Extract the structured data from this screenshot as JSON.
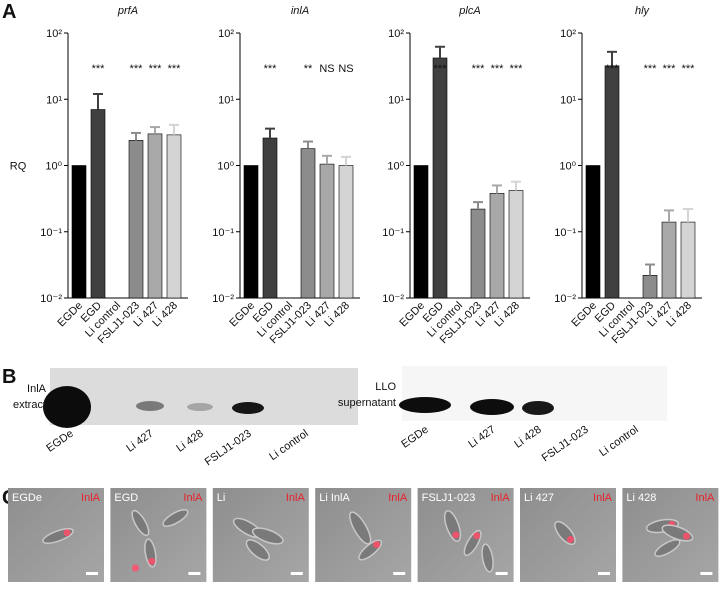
{
  "panel_labels": [
    "A",
    "B",
    "C"
  ],
  "chart_data": [
    {
      "type": "bar",
      "title": "prfA",
      "ylabel": "RQ",
      "log_y": true,
      "categories": [
        "EGDe",
        "EGD",
        "Li control",
        "FSLJ1-023",
        "Li 427",
        "Li 428"
      ],
      "colors": [
        "#000000",
        "#404040",
        "#888888",
        "#8c8c8c",
        "#a8a8a8",
        "#d4d4d4"
      ],
      "values": [
        1,
        7,
        null,
        2.4,
        3.0,
        2.9
      ],
      "errors": [
        null,
        5,
        null,
        0.7,
        0.8,
        1.2
      ],
      "significance": [
        null,
        "***",
        null,
        "***",
        "***",
        "***"
      ],
      "ylim": [
        0.01,
        100
      ],
      "yticks": [
        {
          "value": 0.01,
          "label": "10⁻²"
        },
        {
          "value": 0.1,
          "label": "10⁻¹"
        },
        {
          "value": 1,
          "label": "10⁰"
        },
        {
          "value": 10,
          "label": "10¹"
        },
        {
          "value": 100,
          "label": "10²"
        }
      ]
    },
    {
      "type": "bar",
      "title": "inlA",
      "log_y": true,
      "categories": [
        "EGDe",
        "EGD",
        "Li control",
        "FSLJ1-023",
        "Li 427",
        "Li 428"
      ],
      "colors": [
        "#000000",
        "#404040",
        "#888888",
        "#8c8c8c",
        "#a8a8a8",
        "#d4d4d4"
      ],
      "values": [
        1,
        2.6,
        null,
        1.8,
        1.05,
        1.0
      ],
      "errors": [
        null,
        1.0,
        null,
        0.5,
        0.35,
        0.35
      ],
      "significance": [
        null,
        "***",
        null,
        "**",
        "NS",
        "NS"
      ],
      "ylim": [
        0.01,
        100
      ],
      "yticks": [
        {
          "value": 0.01,
          "label": "10⁻²"
        },
        {
          "value": 0.1,
          "label": "10⁻¹"
        },
        {
          "value": 1,
          "label": "10⁰"
        },
        {
          "value": 10,
          "label": "10¹"
        },
        {
          "value": 100,
          "label": "10²"
        }
      ]
    },
    {
      "type": "bar",
      "title": "plcA",
      "log_y": true,
      "categories": [
        "EGDe",
        "EGD",
        "Li control",
        "FSLJ1-023",
        "Li 427",
        "Li 428"
      ],
      "colors": [
        "#000000",
        "#404040",
        "#888888",
        "#8c8c8c",
        "#a8a8a8",
        "#d4d4d4"
      ],
      "values": [
        1,
        42,
        null,
        0.22,
        0.38,
        0.42
      ],
      "errors": [
        null,
        20,
        null,
        0.06,
        0.12,
        0.15
      ],
      "significance": [
        null,
        "***",
        null,
        "***",
        "***",
        "***"
      ],
      "ylim": [
        0.01,
        100
      ],
      "yticks": [
        {
          "value": 0.01,
          "label": "10⁻²"
        },
        {
          "value": 0.1,
          "label": "10⁻¹"
        },
        {
          "value": 1,
          "label": "10⁰"
        },
        {
          "value": 10,
          "label": "10¹"
        },
        {
          "value": 100,
          "label": "10²"
        }
      ]
    },
    {
      "type": "bar",
      "title": "hly",
      "log_y": true,
      "categories": [
        "EGDe",
        "EGD",
        "Li control",
        "FSLJ1-023",
        "Li 427",
        "Li 428"
      ],
      "colors": [
        "#000000",
        "#404040",
        "#888888",
        "#8c8c8c",
        "#a8a8a8",
        "#d4d4d4"
      ],
      "values": [
        1,
        32,
        null,
        0.022,
        0.14,
        0.14
      ],
      "errors": [
        null,
        20,
        null,
        0.01,
        0.07,
        0.08
      ],
      "significance": [
        null,
        "***",
        null,
        "***",
        "***",
        "***"
      ],
      "ylim": [
        0.01,
        100
      ],
      "yticks": [
        {
          "value": 0.01,
          "label": "10⁻²"
        },
        {
          "value": 0.1,
          "label": "10⁻¹"
        },
        {
          "value": 1,
          "label": "10⁰"
        },
        {
          "value": 10,
          "label": "10¹"
        },
        {
          "value": 100,
          "label": "10²"
        }
      ]
    }
  ],
  "blots": [
    {
      "label": [
        "InlA",
        "extract"
      ],
      "lanes": [
        "EGDe",
        "Li 427",
        "Li 428",
        "FSLJ1-023",
        "Li control"
      ]
    },
    {
      "label": [
        "LLO",
        "supernatant"
      ],
      "lanes": [
        "EGDe",
        "Li 427",
        "Li 428",
        "FSLJ1-023",
        "Li control"
      ]
    }
  ],
  "micrographs": [
    {
      "label": "EGDe",
      "stain": "InlA"
    },
    {
      "label": "EGD",
      "stain": "InlA"
    },
    {
      "label": "Li",
      "stain": "InlA"
    },
    {
      "label": "Li InlA",
      "stain": "InlA"
    },
    {
      "label": "FSLJ1-023",
      "stain": "InlA"
    },
    {
      "label": "Li 427",
      "stain": "InlA"
    },
    {
      "label": "Li 428",
      "stain": "InlA"
    }
  ]
}
